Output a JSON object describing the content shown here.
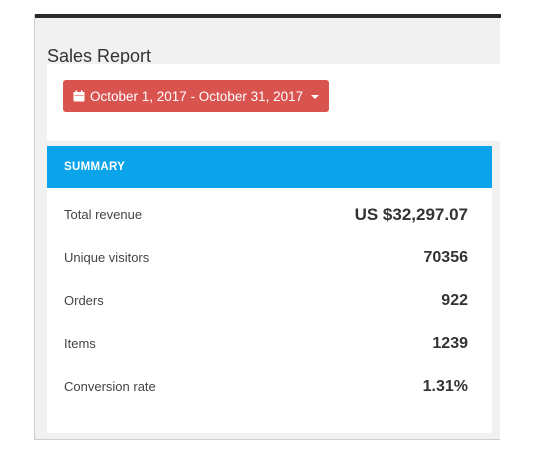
{
  "report": {
    "title": "Sales Report",
    "date_range_label": "October 1, 2017 - October 31, 2017"
  },
  "summary": {
    "heading": "SUMMARY",
    "rows": [
      {
        "label": "Total revenue",
        "value": "US $32,297.07"
      },
      {
        "label": "Unique visitors",
        "value": "70356"
      },
      {
        "label": "Orders",
        "value": "922"
      },
      {
        "label": "Items",
        "value": "1239"
      },
      {
        "label": "Conversion rate",
        "value": "1.31%"
      }
    ]
  },
  "colors": {
    "date_button": "#d9534f",
    "summary_header": "#0ba4ea",
    "panel_bg": "#f1f1f1"
  },
  "icons": {
    "date_button_icon": "calendar-icon",
    "dropdown_icon": "caret-down-icon"
  }
}
